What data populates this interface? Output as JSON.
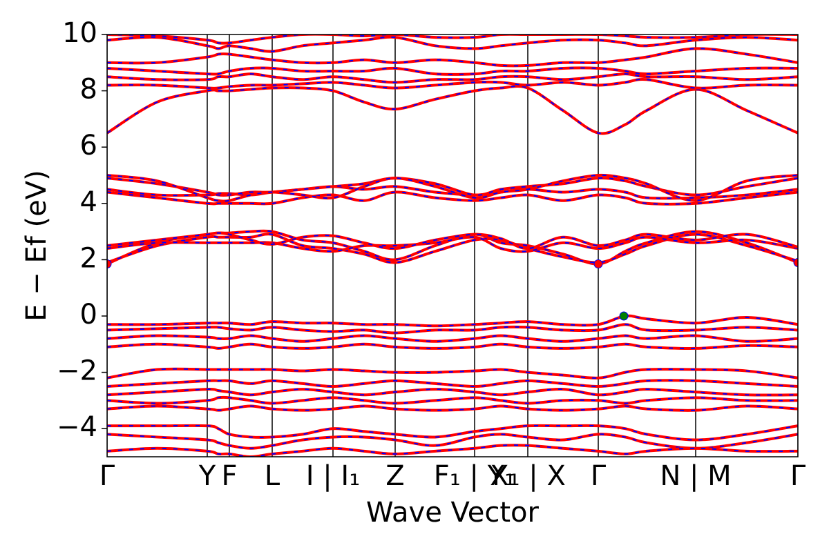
{
  "chart_data": {
    "type": "line",
    "xlabel": "Wave Vector",
    "ylabel": "E − Ef (eV)",
    "xlim": [
      0,
      1.0
    ],
    "ylim": [
      -5,
      10
    ],
    "yticks": [
      {
        "value": -4,
        "label": "−4"
      },
      {
        "value": -2,
        "label": "−2"
      },
      0,
      2,
      4,
      6,
      8,
      10
    ],
    "xticks": [
      {
        "value": 0,
        "label": "Γ"
      },
      {
        "value": 0.145,
        "label": "Y"
      },
      {
        "value": 0.177,
        "label": "F"
      },
      {
        "value": 0.239,
        "label": "L"
      },
      {
        "value": 0.327,
        "label": "I | I₁"
      },
      {
        "value": 0.417,
        "label": "Z"
      },
      {
        "value": 0.532,
        "label": "F₁ | Y₁"
      },
      {
        "value": 0.609,
        "label": "X₁ | X"
      },
      {
        "value": 0.711,
        "label": "Γ"
      },
      {
        "value": 0.852,
        "label": "N | M"
      },
      {
        "value": 1.0,
        "label": "Γ"
      }
    ],
    "grid": true,
    "color": "#ff0000",
    "dash_color": "#0000ff",
    "x": [
      0,
      0.0725,
      0.145,
      0.161,
      0.177,
      0.208,
      0.239,
      0.283,
      0.327,
      0.372,
      0.417,
      0.475,
      0.532,
      0.57,
      0.609,
      0.66,
      0.711,
      0.75,
      0.781,
      0.852,
      0.926,
      1.0
    ],
    "bands": [
      [
        6.5,
        7.6,
        8.0,
        8.0,
        8.0,
        8.05,
        8.1,
        8.1,
        8.0,
        7.6,
        7.35,
        7.7,
        8.0,
        8.1,
        8.1,
        7.3,
        6.5,
        6.8,
        7.3,
        8.05,
        7.3,
        6.5
      ],
      [
        8.2,
        8.2,
        8.1,
        8.1,
        8.15,
        8.2,
        8.2,
        8.25,
        8.3,
        8.2,
        8.1,
        8.2,
        8.3,
        8.3,
        8.2,
        8.3,
        8.2,
        8.3,
        8.4,
        8.1,
        8.2,
        8.2
      ],
      [
        8.5,
        8.4,
        8.4,
        8.5,
        8.5,
        8.6,
        8.5,
        8.4,
        8.5,
        8.4,
        8.3,
        8.4,
        8.4,
        8.5,
        8.5,
        8.4,
        8.5,
        8.6,
        8.5,
        8.5,
        8.4,
        8.5
      ],
      [
        8.8,
        8.7,
        8.6,
        8.6,
        8.7,
        8.8,
        8.8,
        8.7,
        8.7,
        8.7,
        8.8,
        8.6,
        8.6,
        8.7,
        8.7,
        8.8,
        8.8,
        8.7,
        8.6,
        8.7,
        8.8,
        8.8
      ],
      [
        9.0,
        9.0,
        9.2,
        9.3,
        9.3,
        9.2,
        9.1,
        9.0,
        9.0,
        9.1,
        9.0,
        9.1,
        9.0,
        8.9,
        8.9,
        9.0,
        9.0,
        9.1,
        9.2,
        9.5,
        9.3,
        9.0
      ],
      [
        9.8,
        9.9,
        9.6,
        9.5,
        9.6,
        9.5,
        9.4,
        9.6,
        9.7,
        9.8,
        9.9,
        9.6,
        9.5,
        9.6,
        9.7,
        9.8,
        9.8,
        9.7,
        9.6,
        9.8,
        9.9,
        9.8
      ],
      [
        10.0,
        9.95,
        9.8,
        9.7,
        9.7,
        9.8,
        9.9,
        10.0,
        10.0,
        9.95,
        10.0,
        9.9,
        9.9,
        10.0,
        10.0,
        10.0,
        10.0,
        9.95,
        9.9,
        9.9,
        10.0,
        10.0
      ],
      [
        4.4,
        4.2,
        4.0,
        4.0,
        4.0,
        4.0,
        4.0,
        4.2,
        4.3,
        4.1,
        4.4,
        4.2,
        4.1,
        4.2,
        4.3,
        4.1,
        4.3,
        4.2,
        4.0,
        4.0,
        4.2,
        4.4
      ],
      [
        4.5,
        4.3,
        4.3,
        4.35,
        4.35,
        4.3,
        4.4,
        4.5,
        4.6,
        4.5,
        4.6,
        4.4,
        4.3,
        4.4,
        4.5,
        4.4,
        4.5,
        4.4,
        4.2,
        4.2,
        4.3,
        4.5
      ],
      [
        4.9,
        4.7,
        4.4,
        4.3,
        4.3,
        4.4,
        4.4,
        4.5,
        4.6,
        4.7,
        4.9,
        4.7,
        4.3,
        4.5,
        4.6,
        4.7,
        4.9,
        4.8,
        4.6,
        4.3,
        4.6,
        4.9
      ],
      [
        5.0,
        4.8,
        4.2,
        4.1,
        4.1,
        4.3,
        4.4,
        4.3,
        4.2,
        4.6,
        4.9,
        4.6,
        4.2,
        4.4,
        4.5,
        4.8,
        5.0,
        4.9,
        4.7,
        4.1,
        4.8,
        5.0
      ],
      [
        1.85,
        2.6,
        2.9,
        2.95,
        2.95,
        3.0,
        3.0,
        2.7,
        2.6,
        2.3,
        2.0,
        2.5,
        2.9,
        2.6,
        2.5,
        2.2,
        1.85,
        2.3,
        2.6,
        3.0,
        2.6,
        1.9
      ],
      [
        1.9,
        2.5,
        2.8,
        2.8,
        2.8,
        2.8,
        2.9,
        2.5,
        2.4,
        2.2,
        1.9,
        2.3,
        2.7,
        2.7,
        2.4,
        2.1,
        1.9,
        2.2,
        2.5,
        2.9,
        2.5,
        1.95
      ],
      [
        2.4,
        2.6,
        2.6,
        2.6,
        2.6,
        2.6,
        2.6,
        2.4,
        2.3,
        2.5,
        2.5,
        2.6,
        2.8,
        2.4,
        2.3,
        2.6,
        2.4,
        2.6,
        2.8,
        2.6,
        2.7,
        2.4
      ],
      [
        2.5,
        2.7,
        2.9,
        2.95,
        2.9,
        2.7,
        2.55,
        2.8,
        2.85,
        2.6,
        2.4,
        2.7,
        2.9,
        2.75,
        2.4,
        2.8,
        2.5,
        2.7,
        2.9,
        2.7,
        2.9,
        2.45
      ],
      [
        -0.3,
        -0.3,
        -0.25,
        -0.25,
        -0.25,
        -0.3,
        -0.2,
        -0.25,
        -0.25,
        -0.3,
        -0.3,
        -0.35,
        -0.3,
        -0.25,
        -0.2,
        -0.3,
        -0.3,
        0.0,
        -0.1,
        -0.25,
        -0.05,
        -0.3
      ],
      [
        -0.5,
        -0.45,
        -0.4,
        -0.4,
        -0.45,
        -0.5,
        -0.4,
        -0.5,
        -0.55,
        -0.5,
        -0.6,
        -0.5,
        -0.5,
        -0.4,
        -0.4,
        -0.5,
        -0.5,
        -0.3,
        -0.5,
        -0.5,
        -0.4,
        -0.5
      ],
      [
        -0.8,
        -0.7,
        -0.75,
        -0.8,
        -0.8,
        -0.7,
        -0.8,
        -0.9,
        -0.8,
        -0.7,
        -0.8,
        -0.9,
        -0.8,
        -0.7,
        -0.8,
        -0.9,
        -0.8,
        -0.7,
        -0.8,
        -0.7,
        -0.9,
        -0.8
      ],
      [
        -1.1,
        -1.0,
        -1.1,
        -1.15,
        -1.1,
        -1.0,
        -1.1,
        -1.15,
        -1.1,
        -1.0,
        -1.1,
        -1.15,
        -1.1,
        -1.0,
        -1.1,
        -1.15,
        -1.1,
        -1.0,
        -1.1,
        -1.15,
        -1.05,
        -1.1
      ],
      [
        -2.2,
        -1.9,
        -1.9,
        -1.9,
        -1.9,
        -1.9,
        -1.9,
        -1.95,
        -1.9,
        -1.95,
        -2.0,
        -2.0,
        -1.95,
        -1.9,
        -2.0,
        -2.1,
        -2.2,
        -2.0,
        -1.9,
        -1.9,
        -1.95,
        -2.2
      ],
      [
        -2.5,
        -2.4,
        -2.3,
        -2.3,
        -2.3,
        -2.4,
        -2.3,
        -2.4,
        -2.5,
        -2.4,
        -2.3,
        -2.4,
        -2.5,
        -2.4,
        -2.3,
        -2.4,
        -2.5,
        -2.4,
        -2.3,
        -2.3,
        -2.4,
        -2.5
      ],
      [
        -2.8,
        -2.7,
        -2.6,
        -2.65,
        -2.7,
        -2.8,
        -2.7,
        -2.6,
        -2.7,
        -2.8,
        -2.7,
        -2.6,
        -2.7,
        -2.8,
        -2.7,
        -2.6,
        -2.8,
        -2.7,
        -2.6,
        -2.7,
        -2.8,
        -2.8
      ],
      [
        -3.0,
        -3.1,
        -3.0,
        -2.9,
        -2.9,
        -3.0,
        -3.1,
        -3.0,
        -2.9,
        -3.0,
        -3.1,
        -3.0,
        -2.9,
        -3.0,
        -3.1,
        -3.0,
        -3.0,
        -3.1,
        -3.0,
        -2.9,
        -3.0,
        -3.0
      ],
      [
        -3.3,
        -3.2,
        -3.3,
        -3.35,
        -3.3,
        -3.2,
        -3.3,
        -3.35,
        -3.3,
        -3.2,
        -3.3,
        -3.35,
        -3.3,
        -3.2,
        -3.3,
        -3.35,
        -3.3,
        -3.2,
        -3.3,
        -3.35,
        -3.2,
        -3.3
      ],
      [
        -3.9,
        -3.9,
        -3.9,
        -4.0,
        -4.2,
        -4.3,
        -4.3,
        -4.2,
        -4.0,
        -4.1,
        -4.2,
        -4.3,
        -4.1,
        -4.0,
        -3.9,
        -3.9,
        -3.9,
        -4.0,
        -4.2,
        -4.4,
        -4.2,
        -3.9
      ],
      [
        -4.2,
        -4.3,
        -4.4,
        -4.5,
        -4.6,
        -4.7,
        -4.6,
        -4.4,
        -4.3,
        -4.3,
        -4.4,
        -4.6,
        -4.3,
        -4.2,
        -4.3,
        -4.4,
        -4.2,
        -4.3,
        -4.5,
        -4.7,
        -4.5,
        -4.2
      ],
      [
        -4.8,
        -4.7,
        -4.8,
        -4.9,
        -4.9,
        -5.0,
        -4.9,
        -4.8,
        -4.7,
        -4.8,
        -4.9,
        -4.8,
        -4.7,
        -4.6,
        -4.6,
        -4.7,
        -4.8,
        -4.9,
        -4.8,
        -4.7,
        -4.8,
        -4.8
      ]
    ],
    "markers": [
      {
        "x": 0.748,
        "y": 0,
        "color": "#008000"
      },
      {
        "x": 0.711,
        "y": 1.85,
        "color": "#ff0000"
      },
      {
        "x": 0,
        "y": 1.85,
        "color": "#ff0000"
      },
      {
        "x": 1.0,
        "y": 1.9,
        "color": "#ff0000"
      }
    ]
  }
}
